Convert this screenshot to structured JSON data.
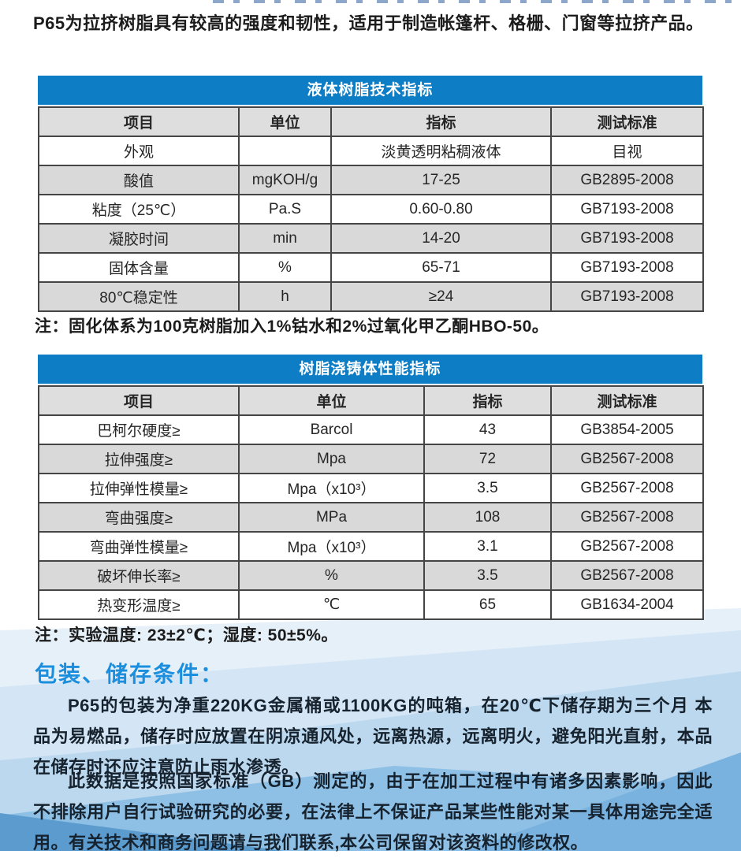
{
  "colors": {
    "table_title_blue": "#0d7ec6",
    "header_row_gray": "#dedede",
    "alt_row_gray": "#d9d9d9",
    "section_heading_blue": "#1b8fdd"
  },
  "intro": "P65为拉挤树脂具有较高的强度和韧性，适用于制造帐篷杆、格栅、门窗等拉挤产品。",
  "table1": {
    "title": "液体树脂技术指标",
    "headers": [
      "项目",
      "单位",
      "指标",
      "测试标准"
    ],
    "rows": [
      [
        "外观",
        "",
        "淡黄透明粘稠液体",
        "目视"
      ],
      [
        "酸值",
        "mgKOH/g",
        "17-25",
        "GB2895-2008"
      ],
      [
        "粘度（25℃）",
        "Pa.S",
        "0.60-0.80",
        "GB7193-2008"
      ],
      [
        "凝胶时间",
        "min",
        "14-20",
        "GB7193-2008"
      ],
      [
        "固体含量",
        "%",
        "65-71",
        "GB7193-2008"
      ],
      [
        "80℃稳定性",
        "h",
        "≥24",
        "GB7193-2008"
      ]
    ],
    "note": "注：固化体系为100克树脂加入1%钴水和2%过氧化甲乙酮HBO-50。"
  },
  "table2": {
    "title": "树脂浇铸体性能指标",
    "headers": [
      "项目",
      "单位",
      "指标",
      "测试标准"
    ],
    "rows": [
      [
        "巴柯尔硬度≥",
        "Barcol",
        "43",
        "GB3854-2005"
      ],
      [
        "拉伸强度≥",
        "Mpa",
        "72",
        "GB2567-2008"
      ],
      [
        "拉伸弹性模量≥",
        "Mpa（x10³）",
        "3.5",
        "GB2567-2008"
      ],
      [
        "弯曲强度≥",
        "MPa",
        "108",
        "GB2567-2008"
      ],
      [
        "弯曲弹性模量≥",
        "Mpa（x10³）",
        "3.1",
        "GB2567-2008"
      ],
      [
        "破坏伸长率≥",
        "%",
        "3.5",
        "GB2567-2008"
      ],
      [
        "热变形温度≥",
        "℃",
        "65",
        "GB1634-2004"
      ]
    ],
    "note": "注：实验温度: 23±2℃；湿度: 50±5%。"
  },
  "storage": {
    "heading": "包装、储存条件：",
    "para1": "P65的包装为净重220KG金属桶或1100KG的吨箱，在20℃下储存期为三个月 本品为易燃品，储存时应放置在阴凉通风处，远离热源，远离明火，避免阳光直射，本品在储存时还应注意防止雨水渗透。",
    "para2": "此数据是按照国家标准（GB）测定的，由于在加工过程中有诸多因素影响，因此不排除用户自行试验研究的必要，在法律上不保证产品某些性能对某一具体用途完全适用。有关技术和商务问题请与我们联系,本公司保留对该资料的修改权。"
  }
}
